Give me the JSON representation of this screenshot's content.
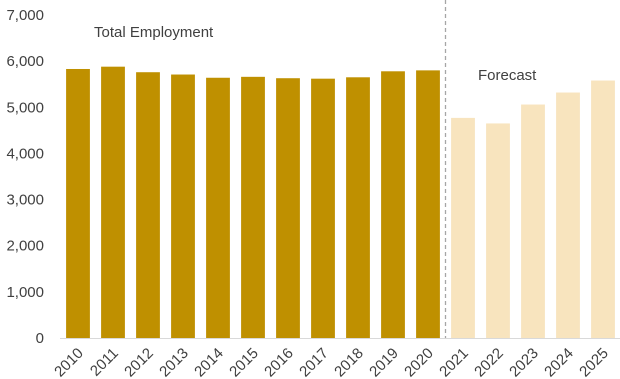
{
  "chart_data": {
    "type": "bar",
    "categories": [
      "2010",
      "2011",
      "2012",
      "2013",
      "2014",
      "2015",
      "2016",
      "2017",
      "2018",
      "2019",
      "2020",
      "2021",
      "2022",
      "2023",
      "2024",
      "2025"
    ],
    "values": [
      5830,
      5880,
      5760,
      5710,
      5640,
      5660,
      5630,
      5620,
      5650,
      5780,
      5800,
      4770,
      4650,
      5060,
      5320,
      5580
    ],
    "forecast_from_index": 11,
    "ylim": [
      0,
      7000
    ],
    "yticks": [
      0,
      1000,
      2000,
      3000,
      4000,
      5000,
      6000,
      7000
    ],
    "ytick_labels": [
      "0",
      "1,000",
      "2,000",
      "3,000",
      "4,000",
      "5,000",
      "6,000",
      "7,000"
    ],
    "grid": false,
    "legend": "none",
    "colors": {
      "actual": "#BF9000",
      "forecast": "#F8E4BE",
      "divider": "#A6A6A6",
      "text": "#404040"
    },
    "annotations": {
      "actual_label": "Total Employment",
      "forecast_label": "Forecast"
    }
  }
}
